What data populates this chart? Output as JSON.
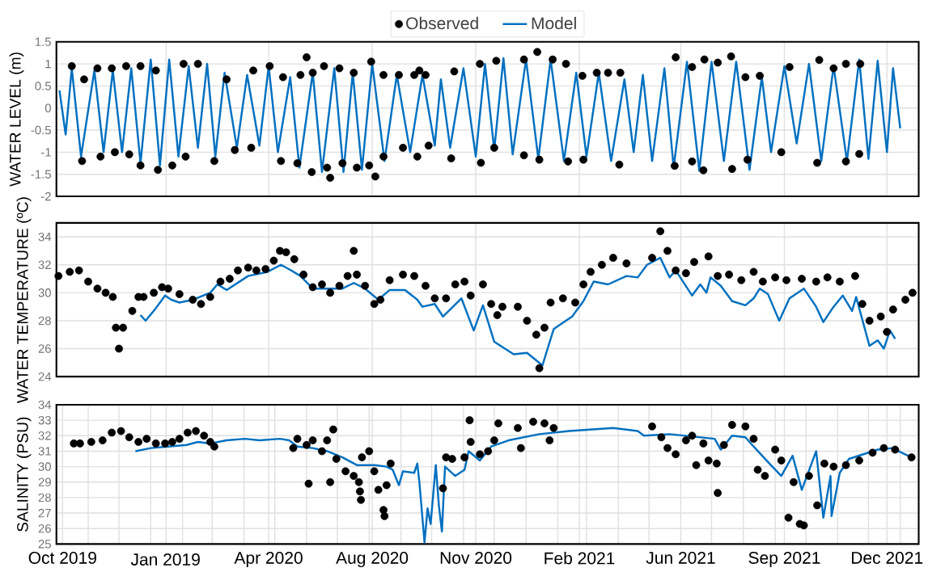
{
  "chart_data": [
    {
      "type": "line",
      "ylabel": "WATER LEVEL (m)",
      "xlim": [
        "2019-10-01",
        "2022-01-19"
      ],
      "ylim": [
        -2,
        1.5
      ],
      "yticks": [
        -2,
        -1.5,
        -1,
        -0.5,
        0,
        0.5,
        1,
        1.5
      ],
      "xticks": [
        {
          "value": "2020-01-16",
          "label": null
        },
        {
          "value": "2020-04-25",
          "label": null
        },
        {
          "value": "2020-08-04",
          "label": null
        },
        {
          "value": "2020-11-13",
          "label": null
        },
        {
          "value": "2021-02-22",
          "label": null
        },
        {
          "value": "2021-06-01",
          "label": null
        },
        {
          "value": "2021-09-10",
          "label": null
        },
        {
          "value": "2021-12-19",
          "label": null
        }
      ],
      "grid": true,
      "legend": "top",
      "tick_labels": "y",
      "series": [
        {
          "name": "Observed",
          "type": "scatter",
          "color": "#000000",
          "x": [
            "2019-10-16",
            "2019-10-26",
            "2019-10-28",
            "2019-11-10",
            "2019-11-13",
            "2019-11-24",
            "2019-11-27",
            "2019-12-08",
            "2019-12-11",
            "2019-12-22",
            "2019-12-22",
            "2020-01-06",
            "2020-01-08",
            "2020-01-22",
            "2020-02-02",
            "2020-02-04",
            "2020-02-16",
            "2020-03-03",
            "2020-03-15",
            "2020-03-23",
            "2020-04-08",
            "2020-04-10",
            "2020-04-26",
            "2020-05-07",
            "2020-05-09",
            "2020-05-23",
            "2020-05-26",
            "2020-06-01",
            "2020-06-06",
            "2020-06-07",
            "2020-06-18",
            "2020-06-21",
            "2020-06-24",
            "2020-07-03",
            "2020-07-06",
            "2020-07-17",
            "2020-07-20",
            "2020-08-01",
            "2020-08-03",
            "2020-08-07",
            "2020-08-15",
            "2020-08-15",
            "2020-08-30",
            "2020-09-03",
            "2020-09-14",
            "2020-09-17",
            "2020-09-19",
            "2020-09-25",
            "2020-09-28",
            "2020-10-20",
            "2020-10-23",
            "2020-11-17",
            "2020-11-18",
            "2020-12-01",
            "2020-12-03",
            "2020-12-30",
            "2020-12-30",
            "2021-01-12",
            "2021-01-14",
            "2021-01-27",
            "2021-02-09",
            "2021-02-11",
            "2021-02-25",
            "2021-02-26",
            "2021-03-11",
            "2021-03-22",
            "2021-04-02",
            "2021-04-03",
            "2021-05-26",
            "2021-05-27",
            "2021-06-12",
            "2021-06-12",
            "2021-06-23",
            "2021-06-24",
            "2021-07-07",
            "2021-07-20",
            "2021-07-21",
            "2021-08-03",
            "2021-08-05",
            "2021-08-17",
            "2021-09-07",
            "2021-09-15",
            "2021-10-12",
            "2021-10-14",
            "2021-10-28",
            "2021-11-09",
            "2021-11-09",
            "2021-11-22",
            "2021-11-23"
          ],
          "values": [
            0.95,
            -1.2,
            0.65,
            0.9,
            -1.1,
            0.9,
            -1.0,
            0.95,
            -1.05,
            0.95,
            -1.3,
            0.85,
            -1.4,
            -1.3,
            1.0,
            -1.1,
            1.0,
            -1.2,
            0.65,
            -0.95,
            -0.9,
            0.85,
            0.95,
            -1.2,
            0.7,
            -1.25,
            0.75,
            1.15,
            -1.45,
            0.8,
            0.95,
            -1.35,
            -1.58,
            0.9,
            -1.25,
            0.8,
            -1.35,
            -1.3,
            1.05,
            -1.55,
            0.75,
            -1.1,
            0.75,
            -0.9,
            0.75,
            -1.1,
            0.85,
            0.75,
            -0.85,
            -1.14,
            0.83,
            1.0,
            -1.24,
            -0.9,
            1.07,
            1.1,
            -1.07,
            1.27,
            -1.17,
            1.1,
            1.0,
            -1.21,
            0.73,
            -1.17,
            0.8,
            0.8,
            -1.28,
            0.8,
            -1.31,
            1.15,
            0.93,
            -1.21,
            -1.41,
            1.1,
            1.03,
            1.17,
            -1.38,
            0.7,
            -1.17,
            0.73,
            -1.0,
            0.93,
            -1.24,
            1.09,
            0.9,
            1.0,
            -1.21,
            -1.04,
            1.0
          ]
        },
        {
          "name": "Model",
          "color": "#0070c0",
          "x": [
            "2019-10-04",
            "2019-10-10",
            "2019-10-16",
            "2019-10-25",
            "2019-11-07",
            "2019-11-16",
            "2019-11-25",
            "2019-12-04",
            "2019-12-13",
            "2019-12-22",
            "2020-01-01",
            "2020-01-10",
            "2020-01-19",
            "2020-01-28",
            "2020-02-07",
            "2020-02-16",
            "2020-02-25",
            "2020-03-04",
            "2020-03-13",
            "2020-03-25",
            "2020-04-04",
            "2020-04-16",
            "2020-04-25",
            "2020-05-04",
            "2020-05-16",
            "2020-05-25",
            "2020-06-07",
            "2020-06-16",
            "2020-06-28",
            "2020-07-07",
            "2020-07-16",
            "2020-07-25",
            "2020-08-04",
            "2020-08-16",
            "2020-08-28",
            "2020-09-10",
            "2020-09-22",
            "2020-10-04",
            "2020-10-10",
            "2020-10-19",
            "2020-11-01",
            "2020-11-13",
            "2020-11-22",
            "2020-12-01",
            "2020-12-10",
            "2020-12-19",
            "2021-01-01",
            "2021-01-13",
            "2021-01-25",
            "2021-02-07",
            "2021-02-19",
            "2021-03-01",
            "2021-03-13",
            "2021-03-25",
            "2021-04-07",
            "2021-04-16",
            "2021-04-25",
            "2021-05-04",
            "2021-05-16",
            "2021-05-25",
            "2021-06-07",
            "2021-06-19",
            "2021-07-01",
            "2021-07-13",
            "2021-07-25",
            "2021-08-07",
            "2021-08-19",
            "2021-08-28",
            "2021-09-10",
            "2021-09-22",
            "2021-10-04",
            "2021-10-16",
            "2021-10-28",
            "2021-11-10",
            "2021-11-22",
            "2021-12-01",
            "2021-12-10",
            "2021-12-19",
            "2021-12-25",
            "2022-01-01"
          ],
          "values": [
            0.4,
            -0.6,
            0.9,
            -1.1,
            0.85,
            -1.0,
            0.85,
            -1.0,
            0.9,
            -1.25,
            1.1,
            -1.3,
            1.1,
            -1.1,
            0.95,
            -0.9,
            1.0,
            -1.1,
            0.8,
            -0.9,
            0.75,
            -0.85,
            0.95,
            -1.0,
            0.7,
            -1.35,
            0.8,
            -1.45,
            0.9,
            -1.45,
            0.8,
            -1.4,
            1.0,
            -1.2,
            0.75,
            -1.0,
            0.75,
            -0.85,
            0.65,
            -0.9,
            0.9,
            -1.1,
            1.0,
            -0.95,
            1.13,
            -1.05,
            1.1,
            -1.15,
            1.1,
            -1.2,
            0.8,
            -1.1,
            0.8,
            -1.2,
            0.65,
            -1.0,
            0.75,
            -1.2,
            0.9,
            -1.35,
            1.05,
            -1.42,
            1.05,
            -1.2,
            1.05,
            -1.4,
            0.7,
            -1.0,
            0.95,
            -0.8,
            1.0,
            -1.2,
            0.95,
            -1.2,
            1.1,
            -1.15,
            1.07,
            -1.0,
            0.9,
            -0.46
          ]
        }
      ]
    },
    {
      "type": "line",
      "ylabel": "WATER TEMPERATURE (ºC)",
      "xlim": [
        "2019-10-01",
        "2022-01-19"
      ],
      "ylim": [
        24,
        35
      ],
      "yticks": [
        24,
        26,
        28,
        30,
        32,
        34
      ],
      "xticks": [
        {
          "value": "2020-01-16",
          "label": null
        },
        {
          "value": "2020-04-25",
          "label": null
        },
        {
          "value": "2020-08-04",
          "label": null
        },
        {
          "value": "2020-11-13",
          "label": null
        },
        {
          "value": "2021-02-22",
          "label": null
        },
        {
          "value": "2021-06-01",
          "label": null
        },
        {
          "value": "2021-09-10",
          "label": null
        },
        {
          "value": "2021-12-19",
          "label": null
        }
      ],
      "grid": true,
      "tick_labels": "y",
      "series": [
        {
          "type": "scatter",
          "color": "#000000",
          "x": [
            "2019-10-03",
            "2019-10-14",
            "2019-10-23",
            "2019-11-01",
            "2019-11-10",
            "2019-11-18",
            "2019-11-25",
            "2019-11-28",
            "2019-12-01",
            "2019-12-05",
            "2019-12-14",
            "2019-12-20",
            "2019-12-25",
            "2020-01-04",
            "2020-01-12",
            "2020-01-18",
            "2020-01-29",
            "2020-02-11",
            "2020-02-19",
            "2020-02-28",
            "2020-03-09",
            "2020-03-18",
            "2020-03-26",
            "2020-04-05",
            "2020-04-13",
            "2020-04-22",
            "2020-04-30",
            "2020-05-06",
            "2020-05-12",
            "2020-05-20",
            "2020-05-29",
            "2020-06-07",
            "2020-06-16",
            "2020-06-24",
            "2020-07-03",
            "2020-07-11",
            "2020-07-17",
            "2020-07-20",
            "2020-07-28",
            "2020-08-06",
            "2020-08-12",
            "2020-08-21",
            "2020-09-03",
            "2020-09-14",
            "2020-09-25",
            "2020-10-04",
            "2020-10-15",
            "2020-10-24",
            "2020-11-02",
            "2020-11-08",
            "2020-11-20",
            "2020-11-28",
            "2020-12-04",
            "2020-12-09",
            "2020-12-24",
            "2021-01-02",
            "2021-01-11",
            "2021-01-14",
            "2021-01-19",
            "2021-01-25",
            "2021-02-06",
            "2021-02-18",
            "2021-02-26",
            "2021-03-05",
            "2021-03-16",
            "2021-03-27",
            "2021-04-09",
            "2021-05-04",
            "2021-05-12",
            "2021-05-19",
            "2021-05-27",
            "2021-06-06",
            "2021-06-14",
            "2021-06-28",
            "2021-07-07",
            "2021-07-18",
            "2021-07-30",
            "2021-08-11",
            "2021-08-20",
            "2021-09-01",
            "2021-09-12",
            "2021-09-27",
            "2021-10-11",
            "2021-10-22",
            "2021-11-03",
            "2021-11-18",
            "2021-11-25",
            "2021-12-02",
            "2021-12-13",
            "2021-12-19",
            "2021-12-25",
            "2022-01-06",
            "2022-01-13"
          ],
          "values": [
            31.2,
            31.5,
            31.6,
            30.8,
            30.3,
            30.0,
            29.7,
            27.5,
            26.0,
            27.5,
            28.7,
            29.7,
            29.7,
            30.0,
            30.4,
            30.3,
            29.9,
            29.5,
            29.2,
            29.7,
            30.8,
            31.0,
            31.6,
            31.8,
            31.6,
            31.7,
            32.3,
            33.0,
            32.9,
            32.4,
            31.3,
            30.4,
            30.6,
            30.0,
            30.5,
            31.2,
            33.0,
            31.3,
            30.5,
            29.2,
            29.5,
            30.9,
            31.3,
            31.2,
            30.5,
            29.6,
            29.6,
            30.6,
            30.8,
            29.8,
            30.6,
            29.2,
            28.4,
            29.0,
            29.0,
            28.0,
            27.0,
            24.6,
            27.5,
            29.3,
            29.6,
            29.3,
            30.6,
            31.5,
            32.0,
            32.5,
            32.1,
            32.5,
            34.4,
            33.0,
            31.6,
            31.4,
            32.2,
            32.6,
            31.2,
            31.3,
            30.9,
            31.5,
            30.8,
            31.1,
            30.9,
            31.0,
            30.8,
            31.1,
            30.8,
            31.2,
            29.2,
            28.0,
            28.3,
            27.2,
            28.8,
            29.5,
            30.0
          ]
        },
        {
          "color": "#0070c0",
          "x": [
            "2019-12-22",
            "2019-12-27",
            "2020-01-06",
            "2020-01-15",
            "2020-01-21",
            "2020-01-29",
            "2020-02-11",
            "2020-02-28",
            "2020-03-06",
            "2020-03-15",
            "2020-04-05",
            "2020-04-24",
            "2020-05-07",
            "2020-05-17",
            "2020-05-26",
            "2020-06-07",
            "2020-06-21",
            "2020-07-06",
            "2020-07-17",
            "2020-07-28",
            "2020-08-10",
            "2020-08-21",
            "2020-09-05",
            "2020-09-17",
            "2020-09-22",
            "2020-10-04",
            "2020-10-12",
            "2020-10-30",
            "2020-11-11",
            "2020-11-20",
            "2020-12-01",
            "2020-12-20",
            "2021-01-02",
            "2021-01-17",
            "2021-01-28",
            "2021-02-15",
            "2021-02-26",
            "2021-03-08",
            "2021-03-22",
            "2021-04-09",
            "2021-04-20",
            "2021-04-29",
            "2021-05-12",
            "2021-05-21",
            "2021-05-27",
            "2021-06-12",
            "2021-06-20",
            "2021-06-26",
            "2021-06-30",
            "2021-07-10",
            "2021-07-21",
            "2021-08-03",
            "2021-08-11",
            "2021-08-17",
            "2021-08-25",
            "2021-09-05",
            "2021-09-15",
            "2021-09-29",
            "2021-10-11",
            "2021-10-18",
            "2021-10-28",
            "2021-11-06",
            "2021-11-15",
            "2021-11-19",
            "2021-12-02",
            "2021-12-10",
            "2021-12-16",
            "2021-12-22",
            "2021-12-27"
          ],
          "values": [
            28.4,
            28.0,
            28.9,
            29.8,
            29.5,
            29.3,
            29.5,
            30.0,
            30.6,
            30.2,
            31.2,
            31.5,
            32.0,
            31.6,
            31.2,
            30.3,
            30.3,
            30.3,
            30.7,
            30.3,
            29.5,
            30.2,
            30.2,
            29.5,
            29.0,
            29.2,
            28.3,
            29.6,
            27.3,
            29.1,
            26.5,
            25.6,
            25.7,
            24.8,
            27.4,
            28.3,
            29.4,
            30.8,
            30.6,
            31.2,
            31.1,
            32.0,
            32.5,
            31.1,
            31.6,
            29.8,
            30.6,
            30.0,
            31.1,
            30.5,
            29.4,
            29.1,
            29.6,
            30.3,
            29.9,
            28.0,
            29.6,
            30.3,
            29.0,
            27.9,
            29.0,
            29.8,
            28.7,
            29.7,
            26.2,
            26.6,
            26.0,
            27.3,
            26.7
          ]
        }
      ]
    },
    {
      "type": "line",
      "ylabel": "SALINITY (PSU)",
      "xlim": [
        "2019-10-01",
        "2022-01-19"
      ],
      "ylim": [
        25,
        34
      ],
      "yticks": [
        25,
        26,
        27,
        28,
        29,
        30,
        31,
        32,
        33,
        34
      ],
      "xticks": [
        {
          "value": "2019-10-07",
          "label": "Oct 2019"
        },
        {
          "value": "2020-01-16",
          "label": null
        },
        {
          "value": "2020-04-25",
          "label": "Apr 2020"
        },
        {
          "value": "2020-08-04",
          "label": "Aug 2020"
        },
        {
          "value": "2020-11-13",
          "label": "Nov 2020"
        },
        {
          "value": "2021-02-22",
          "label": "Feb 2021"
        },
        {
          "value": "2021-06-01",
          "label": "Jun 2021"
        },
        {
          "value": "2021-09-10",
          "label": "Sep 2021"
        },
        {
          "value": "2021-12-19",
          "label": "Dec 2021"
        },
        {
          "value": "2019-11-01",
          "label": null
        },
        {
          "value": "2019-12-01",
          "label": null
        },
        {
          "value": "2020-01-01",
          "label": null
        },
        {
          "value": "2020-02-01",
          "label": null
        },
        {
          "value": "2020-03-01",
          "label": null
        },
        {
          "value": "2020-04-01",
          "label": null
        },
        {
          "value": "2020-05-01",
          "label": null
        },
        {
          "value": "2020-06-01",
          "label": null
        },
        {
          "value": "2020-07-01",
          "label": null
        },
        {
          "value": "2020-08-01",
          "label": null
        },
        {
          "value": "2020-09-01",
          "label": null
        },
        {
          "value": "2020-10-01",
          "label": null
        },
        {
          "value": "2020-11-01",
          "label": null
        },
        {
          "value": "2020-12-01",
          "label": null
        },
        {
          "value": "2021-01-01",
          "label": null
        },
        {
          "value": "2021-02-01",
          "label": null
        },
        {
          "value": "2021-03-01",
          "label": null
        },
        {
          "value": "2021-04-01",
          "label": null
        },
        {
          "value": "2021-05-01",
          "label": null
        },
        {
          "value": "2021-07-01",
          "label": null
        },
        {
          "value": "2021-08-01",
          "label": null
        },
        {
          "value": "2021-09-01",
          "label": null
        },
        {
          "value": "2021-10-01",
          "label": null
        },
        {
          "value": "2021-11-01",
          "label": null
        },
        {
          "value": "2021-12-01",
          "label": null
        },
        {
          "value": "2022-01-01",
          "label": null
        }
      ],
      "grid": true,
      "annotations": [
        "Jan 2019"
      ],
      "series": [
        {
          "type": "scatter",
          "color": "#000000",
          "x": [
            "2019-10-18",
            "2019-10-24",
            "2019-11-04",
            "2019-11-15",
            "2019-11-24",
            "2019-12-03",
            "2019-12-11",
            "2019-12-20",
            "2019-12-28",
            "2020-01-06",
            "2020-01-15",
            "2020-01-22",
            "2020-01-29",
            "2020-02-06",
            "2020-02-14",
            "2020-02-22",
            "2020-02-28",
            "2020-03-03",
            "2020-05-19",
            "2020-05-23",
            "2020-06-01",
            "2020-06-03",
            "2020-06-07",
            "2020-06-16",
            "2020-06-21",
            "2020-06-24",
            "2020-06-27",
            "2020-06-30",
            "2020-07-09",
            "2020-07-17",
            "2020-07-22",
            "2020-07-23",
            "2020-07-24",
            "2020-07-25",
            "2020-08-01",
            "2020-08-06",
            "2020-08-10",
            "2020-08-15",
            "2020-08-16",
            "2020-08-18",
            "2020-08-22",
            "2020-10-12",
            "2020-10-15",
            "2020-10-21",
            "2020-11-02",
            "2020-11-07",
            "2020-11-08",
            "2020-11-17",
            "2020-11-25",
            "2020-12-01",
            "2020-12-05",
            "2020-12-24",
            "2020-12-27",
            "2021-01-08",
            "2021-01-19",
            "2021-01-24",
            "2021-01-28",
            "2021-05-04",
            "2021-05-13",
            "2021-05-19",
            "2021-05-27",
            "2021-06-06",
            "2021-06-12",
            "2021-06-16",
            "2021-06-23",
            "2021-06-28",
            "2021-07-06",
            "2021-07-07",
            "2021-07-13",
            "2021-07-21",
            "2021-08-03",
            "2021-08-11",
            "2021-08-15",
            "2021-08-22",
            "2021-09-01",
            "2021-09-07",
            "2021-09-14",
            "2021-09-19",
            "2021-09-25",
            "2021-09-29",
            "2021-10-04",
            "2021-10-12",
            "2021-10-19",
            "2021-10-28",
            "2021-11-09",
            "2021-11-22",
            "2021-12-05",
            "2021-12-16",
            "2021-12-27",
            "2022-01-12"
          ],
          "values": [
            31.5,
            31.5,
            31.6,
            31.7,
            32.2,
            32.3,
            31.9,
            31.6,
            31.8,
            31.5,
            31.5,
            31.6,
            31.8,
            32.2,
            32.3,
            32.0,
            31.6,
            31.3,
            31.2,
            31.8,
            31.4,
            28.9,
            31.7,
            31.0,
            31.7,
            29.0,
            32.4,
            30.5,
            29.7,
            29.4,
            29.0,
            28.4,
            27.85,
            30.6,
            31.0,
            29.7,
            28.5,
            27.2,
            26.8,
            28.8,
            30.2,
            28.6,
            30.6,
            30.5,
            30.6,
            33.0,
            31.6,
            30.8,
            31.0,
            31.7,
            32.8,
            32.5,
            31.2,
            32.9,
            32.8,
            31.7,
            32.5,
            32.6,
            31.9,
            31.2,
            30.8,
            31.7,
            32.0,
            30.1,
            31.5,
            30.4,
            30.2,
            28.3,
            31.4,
            32.7,
            32.6,
            31.8,
            29.8,
            29.4,
            31.1,
            30.4,
            26.7,
            29.0,
            26.3,
            26.2,
            29.4,
            27.5,
            30.2,
            30.0,
            30.1,
            30.4,
            30.9,
            31.2,
            31.1,
            30.6
          ]
        },
        {
          "color": "#0070c0",
          "x": [
            "2019-12-17",
            "2020-01-01",
            "2020-01-18",
            "2020-02-05",
            "2020-02-16",
            "2020-02-28",
            "2020-03-15",
            "2020-04-02",
            "2020-04-16",
            "2020-05-06",
            "2020-05-15",
            "2020-05-23",
            "2020-06-07",
            "2020-06-21",
            "2020-07-06",
            "2020-07-20",
            "2020-08-07",
            "2020-08-18",
            "2020-08-24",
            "2020-08-30",
            "2020-09-03",
            "2020-09-14",
            "2020-09-17",
            "2020-09-19",
            "2020-09-24",
            "2020-09-27",
            "2020-09-30",
            "2020-10-05",
            "2020-10-08",
            "2020-10-11",
            "2020-10-14",
            "2020-10-24",
            "2020-11-02",
            "2020-11-06",
            "2020-11-17",
            "2020-11-28",
            "2020-12-15",
            "2021-01-14",
            "2021-02-12",
            "2021-03-27",
            "2021-04-20",
            "2021-04-26",
            "2021-05-21",
            "2021-07-04",
            "2021-07-10",
            "2021-07-21",
            "2021-08-03",
            "2021-08-11",
            "2021-08-25",
            "2021-09-07",
            "2021-09-18",
            "2021-09-27",
            "2021-10-11",
            "2021-10-18",
            "2021-10-25",
            "2021-10-26",
            "2021-11-03",
            "2021-11-12",
            "2021-11-26",
            "2021-12-10",
            "2021-12-24",
            "2022-01-12"
          ],
          "values": [
            31.0,
            31.2,
            31.3,
            31.4,
            31.6,
            31.5,
            31.7,
            31.8,
            31.7,
            31.8,
            31.7,
            31.3,
            31.2,
            31.0,
            30.6,
            30.1,
            30.1,
            30.0,
            29.8,
            28.8,
            29.7,
            29.6,
            30.2,
            29.0,
            25.1,
            27.3,
            26.3,
            30.1,
            27.5,
            25.8,
            30.0,
            29.4,
            29.8,
            31.0,
            30.4,
            31.3,
            31.7,
            32.1,
            32.3,
            32.5,
            32.3,
            32.0,
            32.1,
            31.8,
            31.1,
            32.0,
            31.9,
            31.3,
            30.3,
            29.4,
            30.7,
            28.5,
            31.0,
            26.7,
            29.4,
            26.8,
            29.6,
            30.5,
            30.8,
            31.1,
            31.2,
            30.6
          ]
        }
      ]
    }
  ]
}
